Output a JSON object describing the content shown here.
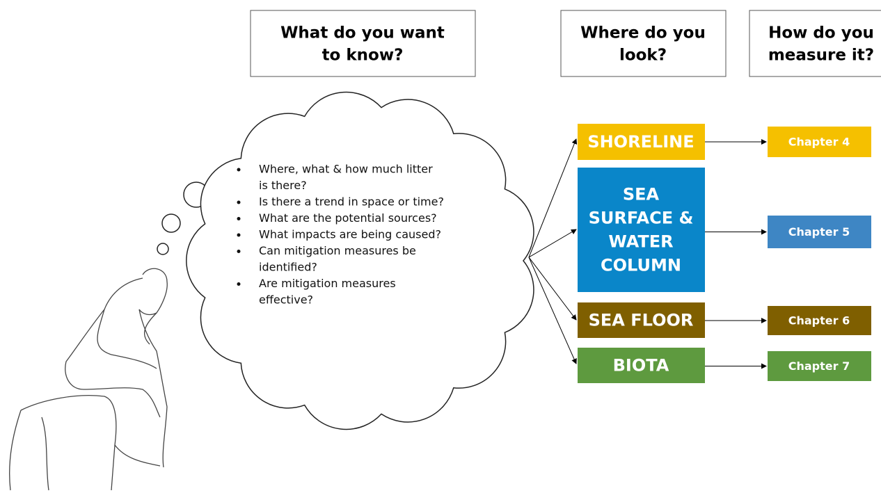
{
  "headers": [
    {
      "lines": [
        "What do you want",
        "to know?"
      ]
    },
    {
      "lines": [
        "Where do you",
        "look?"
      ]
    },
    {
      "lines": [
        "How do you",
        "measure it?"
      ]
    }
  ],
  "questions": [
    {
      "lines": [
        "Where, what & how much litter",
        "is there?"
      ]
    },
    {
      "lines": [
        "Is there a trend in space or time?"
      ]
    },
    {
      "lines": [
        "What are the potential sources?"
      ]
    },
    {
      "lines": [
        "What impacts are being caused?"
      ]
    },
    {
      "lines": [
        "Can mitigation measures be",
        "identified?"
      ]
    },
    {
      "lines": [
        "Are mitigation measures",
        "effective?"
      ]
    }
  ],
  "compartments": [
    {
      "lines": [
        "SHORELINE"
      ],
      "color": "#f5c000",
      "chapter": "Chapter 4",
      "chapter_color": "#f5c000"
    },
    {
      "lines": [
        "SEA",
        "SURFACE &",
        "WATER",
        "COLUMN"
      ],
      "color": "#0a86c9",
      "chapter": "Chapter 5",
      "chapter_color": "#3e86c4"
    },
    {
      "lines": [
        "SEA FLOOR"
      ],
      "color": "#7f5f00",
      "chapter": "Chapter 6",
      "chapter_color": "#7f5f00"
    },
    {
      "lines": [
        "BIOTA"
      ],
      "color": "#5e9a3f",
      "chapter": "Chapter 7",
      "chapter_color": "#5e9a3f"
    }
  ]
}
